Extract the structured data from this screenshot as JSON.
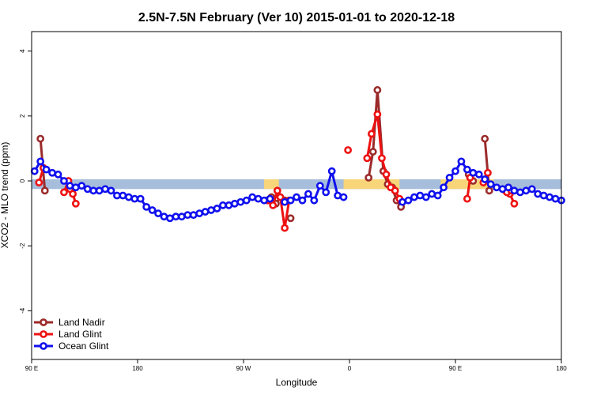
{
  "chart_data": {
    "type": "line",
    "title": "2.5N-7.5N February (Ver 10)   2015-01-01 to 2020-12-18",
    "xlabel": "Longitude",
    "ylabel": "XCO2 - MLO trend (ppm)",
    "xlim": [
      90,
      450
    ],
    "ylim": [
      -5.5,
      4.6
    ],
    "x_ticks": [
      {
        "value": 90,
        "label": "90 E"
      },
      {
        "value": 162,
        "label": "180"
      },
      {
        "value": 234,
        "label": "90 W"
      },
      {
        "value": 306,
        "label": "0"
      },
      {
        "value": 378,
        "label": "90 E"
      },
      {
        "value": 450,
        "label": "180"
      }
    ],
    "y_ticks": [
      -4,
      -2,
      0,
      2,
      4
    ],
    "legend_position": "bottom-left",
    "background_band": {
      "ymin": -0.25,
      "ymax": 0.05,
      "color": "#a6bddb"
    },
    "highlight_segments": [
      {
        "xmin": 248,
        "xmax": 258,
        "color": "#f9d57a"
      },
      {
        "xmin": 302,
        "xmax": 340,
        "color": "#f9d57a"
      },
      {
        "xmin": 368,
        "xmax": 404,
        "color": "#f9d57a"
      }
    ],
    "series": [
      {
        "name": "Land Nadir",
        "color": "#9b2b2b",
        "segments": [
          [
            [
              96,
              1.3
            ],
            [
              99,
              -0.3
            ]
          ],
          [
            [
              250,
              -0.6
            ],
            [
              253,
              -0.5
            ],
            [
              256,
              -0.7
            ],
            [
              259,
              -0.5
            ],
            [
              262,
              -0.6
            ]
          ],
          [
            [
              266,
              -1.15
            ]
          ],
          [
            [
              319,
              0.1
            ],
            [
              322,
              0.9
            ],
            [
              325,
              2.8
            ],
            [
              329,
              0.3
            ],
            [
              332,
              -0.1
            ],
            [
              335,
              -0.2
            ],
            [
              338,
              -0.6
            ],
            [
              341,
              -0.8
            ]
          ],
          [
            [
              387,
              0.2
            ],
            [
              390,
              0.0
            ]
          ],
          [
            [
              398,
              1.3
            ],
            [
              401,
              -0.3
            ]
          ]
        ]
      },
      {
        "name": "Land Glint",
        "color": "#ee1111",
        "segments": [
          [
            [
              95,
              -0.05
            ],
            [
              98,
              0.4
            ]
          ],
          [
            [
              112,
              -0.35
            ],
            [
              115,
              0.0
            ],
            [
              118,
              -0.4
            ],
            [
              120,
              -0.7
            ]
          ],
          [
            [
              116,
              -0.25
            ]
          ],
          [
            [
              251,
              -0.6
            ],
            [
              254,
              -0.75
            ],
            [
              257,
              -0.3
            ],
            [
              259,
              -0.5
            ],
            [
              262,
              -1.45
            ],
            [
              265,
              -0.6
            ]
          ],
          [
            [
              305,
              0.95
            ]
          ],
          [
            [
              318,
              0.7
            ],
            [
              321,
              1.45
            ],
            [
              325,
              2.05
            ],
            [
              328,
              0.7
            ],
            [
              331,
              0.2
            ],
            [
              334,
              -0.2
            ],
            [
              337,
              -0.3
            ],
            [
              340,
              -0.55
            ]
          ],
          [
            [
              386,
              -0.55
            ],
            [
              388,
              0.1
            ]
          ],
          [
            [
              397,
              -0.05
            ],
            [
              400,
              0.25
            ]
          ],
          [
            [
              412,
              -0.3
            ],
            [
              415,
              -0.4
            ],
            [
              418,
              -0.7
            ]
          ],
          [
            [
              413,
              -0.35
            ],
            [
              416,
              -0.3
            ]
          ]
        ]
      },
      {
        "name": "Ocean Glint",
        "color": "#1010ee",
        "segments": [
          [
            [
              92,
              0.3
            ],
            [
              96,
              0.6
            ],
            [
              100,
              0.35
            ],
            [
              104,
              0.25
            ],
            [
              108,
              0.2
            ],
            [
              112,
              0.0
            ],
            [
              116,
              -0.15
            ],
            [
              120,
              -0.2
            ],
            [
              124,
              -0.15
            ],
            [
              128,
              -0.25
            ],
            [
              132,
              -0.3
            ],
            [
              136,
              -0.3
            ],
            [
              140,
              -0.25
            ],
            [
              144,
              -0.3
            ],
            [
              148,
              -0.45
            ],
            [
              152,
              -0.45
            ],
            [
              156,
              -0.5
            ],
            [
              160,
              -0.55
            ],
            [
              164,
              -0.55
            ],
            [
              168,
              -0.8
            ],
            [
              172,
              -0.9
            ],
            [
              176,
              -1.0
            ],
            [
              180,
              -1.1
            ],
            [
              184,
              -1.15
            ],
            [
              188,
              -1.1
            ],
            [
              192,
              -1.1
            ],
            [
              196,
              -1.05
            ],
            [
              200,
              -1.05
            ],
            [
              204,
              -1.0
            ],
            [
              208,
              -0.95
            ],
            [
              212,
              -0.9
            ],
            [
              216,
              -0.85
            ],
            [
              220,
              -0.75
            ],
            [
              224,
              -0.75
            ],
            [
              228,
              -0.7
            ],
            [
              232,
              -0.65
            ],
            [
              236,
              -0.6
            ],
            [
              240,
              -0.5
            ],
            [
              244,
              -0.55
            ],
            [
              248,
              -0.6
            ],
            [
              252,
              -0.55
            ]
          ],
          [
            [
              262,
              -0.65
            ],
            [
              266,
              -0.6
            ],
            [
              270,
              -0.5
            ],
            [
              274,
              -0.6
            ],
            [
              278,
              -0.4
            ],
            [
              282,
              -0.6
            ],
            [
              286,
              -0.15
            ],
            [
              290,
              -0.35
            ],
            [
              294,
              0.3
            ],
            [
              298,
              -0.45
            ],
            [
              302,
              -0.5
            ]
          ],
          [
            [
              342,
              -0.65
            ],
            [
              346,
              -0.6
            ],
            [
              350,
              -0.5
            ],
            [
              354,
              -0.45
            ],
            [
              358,
              -0.5
            ],
            [
              362,
              -0.4
            ],
            [
              366,
              -0.45
            ],
            [
              370,
              -0.2
            ],
            [
              374,
              0.1
            ],
            [
              378,
              0.3
            ],
            [
              382,
              0.6
            ],
            [
              386,
              0.35
            ],
            [
              390,
              0.25
            ],
            [
              394,
              0.2
            ],
            [
              398,
              0.05
            ],
            [
              402,
              -0.1
            ],
            [
              406,
              -0.2
            ],
            [
              410,
              -0.25
            ],
            [
              414,
              -0.2
            ],
            [
              418,
              -0.3
            ],
            [
              422,
              -0.35
            ],
            [
              426,
              -0.3
            ],
            [
              430,
              -0.25
            ],
            [
              434,
              -0.4
            ],
            [
              438,
              -0.45
            ],
            [
              442,
              -0.5
            ],
            [
              446,
              -0.55
            ],
            [
              450,
              -0.6
            ]
          ]
        ]
      }
    ]
  }
}
